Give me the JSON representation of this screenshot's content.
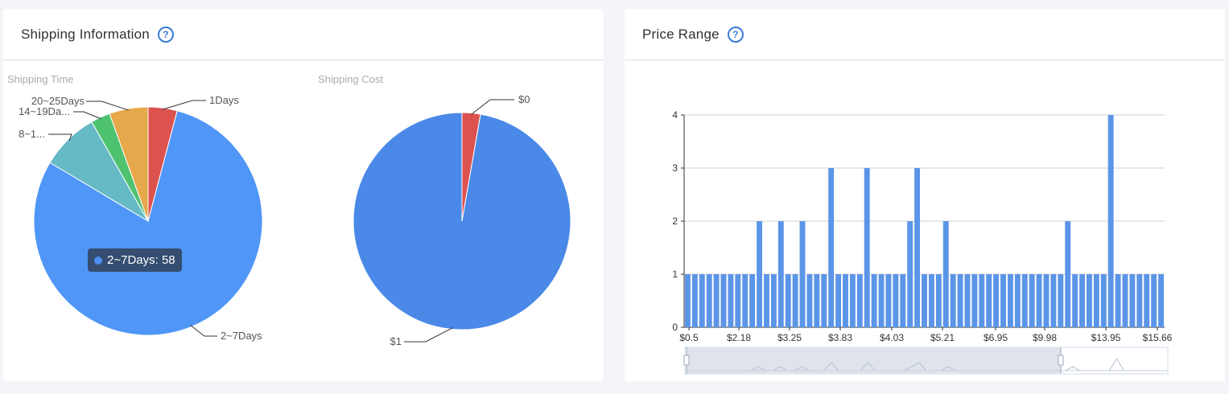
{
  "shipping_card": {
    "title": "Shipping Information",
    "help_icon": "question-circle-icon",
    "shipping_time": {
      "title": "Shipping Time",
      "chart_data": {
        "type": "pie",
        "slices": [
          {
            "label": "1Days",
            "value": 3,
            "color": "#dc524f"
          },
          {
            "label": "2~7Days",
            "value": 58,
            "color": "#4f96f7"
          },
          {
            "label": "8~1...",
            "value": 6,
            "color": "#66bac5"
          },
          {
            "label": "14~19Da...",
            "value": 2,
            "color": "#4fc270"
          },
          {
            "label": "20~25Days",
            "value": 4,
            "color": "#e6a84a"
          }
        ]
      },
      "tooltip": {
        "label": "2~7Days: 58"
      }
    },
    "shipping_cost": {
      "title": "Shipping Cost",
      "chart_data": {
        "type": "pie",
        "slices": [
          {
            "label": "$0",
            "value": 2,
            "color": "#dc524f"
          },
          {
            "label": "$1",
            "value": 71,
            "color": "#4a89e8"
          }
        ]
      }
    }
  },
  "price_card": {
    "title": "Price Range",
    "help_icon": "question-circle-icon",
    "chart_data": {
      "type": "bar",
      "color": "#5b95e8",
      "ylim": [
        0,
        4
      ],
      "yticks": [
        "0",
        "1",
        "2",
        "3",
        "4"
      ],
      "xticks": [
        "$0.5",
        "$2.18",
        "$3.25",
        "$3.83",
        "$4.03",
        "$5.21",
        "$6.95",
        "$9.98",
        "$13.95",
        "$15.66"
      ],
      "values": [
        1,
        1,
        1,
        1,
        1,
        1,
        1,
        1,
        1,
        1,
        2,
        1,
        1,
        2,
        1,
        1,
        2,
        1,
        1,
        1,
        3,
        1,
        1,
        1,
        1,
        3,
        1,
        1,
        1,
        1,
        1,
        2,
        3,
        1,
        1,
        1,
        2,
        1,
        1,
        1,
        1,
        1,
        1,
        1,
        1,
        1,
        1,
        1,
        1,
        1,
        1,
        1,
        1,
        2,
        1,
        1,
        1,
        1,
        1,
        4,
        1,
        1,
        1,
        1,
        1,
        1,
        1
      ]
    }
  }
}
